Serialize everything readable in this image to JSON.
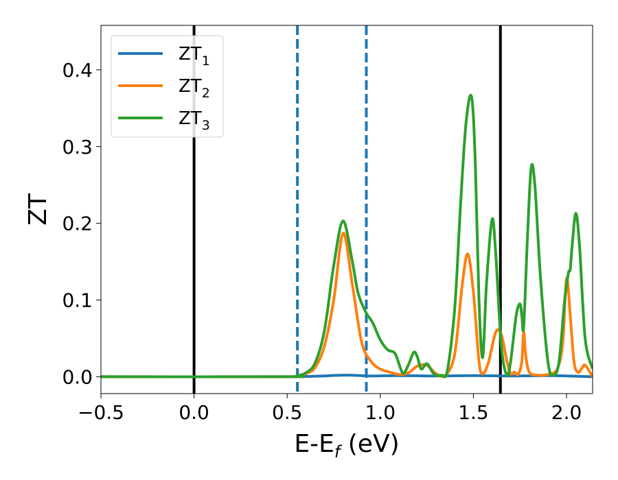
{
  "chart_data": {
    "type": "line",
    "title": "",
    "xlabel": "E-E",
    "xlabel_sub": "f",
    "xlabel_unit": " (eV)",
    "ylabel": "ZT",
    "xlim": [
      -0.5,
      2.14
    ],
    "ylim": [
      -0.022,
      0.458
    ],
    "xticks": [
      -0.5,
      0.0,
      0.5,
      1.0,
      1.5,
      2.0
    ],
    "xtick_labels": [
      "−0.5",
      "0.0",
      "0.5",
      "1.0",
      "1.5",
      "2.0"
    ],
    "yticks": [
      0.0,
      0.1,
      0.2,
      0.3,
      0.4
    ],
    "ytick_labels": [
      "0.0",
      "0.1",
      "0.2",
      "0.3",
      "0.4"
    ],
    "grid": false,
    "legend_position": "top-left",
    "vlines": [
      {
        "x": 0.0,
        "style": "solid",
        "color": "#000000"
      },
      {
        "x": 0.555,
        "style": "dashed",
        "color": "#1f77b4"
      },
      {
        "x": 0.925,
        "style": "dashed",
        "color": "#1f77b4"
      },
      {
        "x": 1.645,
        "style": "solid",
        "color": "#000000"
      }
    ],
    "series": [
      {
        "name": "ZT",
        "name_sub": "1",
        "color": "#1f77b4",
        "x": [
          -0.5,
          0.5,
          0.8,
          0.95,
          1.1,
          1.3,
          1.5,
          1.7,
          1.9,
          2.0,
          2.14
        ],
        "y": [
          0.0,
          0.0,
          0.002,
          0.001,
          0.0015,
          0.001,
          0.0015,
          0.001,
          0.0015,
          0.001,
          0.0
        ]
      },
      {
        "name": "ZT",
        "name_sub": "2",
        "color": "#ff7f0e",
        "x": [
          -0.5,
          0.5,
          0.55,
          0.6,
          0.65,
          0.7,
          0.75,
          0.8,
          0.85,
          0.9,
          0.95,
          1.0,
          1.05,
          1.1,
          1.15,
          1.2,
          1.25,
          1.3,
          1.35,
          1.4,
          1.44,
          1.47,
          1.5,
          1.53,
          1.55,
          1.58,
          1.62,
          1.65,
          1.68,
          1.7,
          1.72,
          1.74,
          1.76,
          1.77,
          1.78,
          1.8,
          1.85,
          1.9,
          1.95,
          1.98,
          2.0,
          2.02,
          2.04,
          2.06,
          2.08,
          2.1,
          2.14
        ],
        "y": [
          0.0,
          0.0,
          0.001,
          0.004,
          0.012,
          0.04,
          0.1,
          0.187,
          0.12,
          0.045,
          0.02,
          0.01,
          0.006,
          0.003,
          0.005,
          0.014,
          0.015,
          0.004,
          0.002,
          0.03,
          0.12,
          0.16,
          0.11,
          0.02,
          0.004,
          0.018,
          0.058,
          0.055,
          0.02,
          0.004,
          0.006,
          0.003,
          0.02,
          0.058,
          0.03,
          0.006,
          0.002,
          0.003,
          0.01,
          0.045,
          0.128,
          0.08,
          0.02,
          0.006,
          0.01,
          0.015,
          0.0
        ]
      },
      {
        "name": "ZT",
        "name_sub": "3",
        "color": "#2ca02c",
        "x": [
          -0.5,
          0.5,
          0.55,
          0.6,
          0.65,
          0.7,
          0.75,
          0.8,
          0.85,
          0.88,
          0.92,
          0.96,
          1.0,
          1.04,
          1.08,
          1.12,
          1.15,
          1.18,
          1.2,
          1.22,
          1.25,
          1.28,
          1.3,
          1.33,
          1.36,
          1.4,
          1.43,
          1.46,
          1.49,
          1.51,
          1.53,
          1.55,
          1.57,
          1.6,
          1.62,
          1.65,
          1.68,
          1.7,
          1.73,
          1.75,
          1.76,
          1.77,
          1.79,
          1.81,
          1.83,
          1.86,
          1.9,
          1.93,
          1.96,
          1.99,
          2.01,
          2.02,
          2.03,
          2.05,
          2.07,
          2.1,
          2.14
        ],
        "y": [
          0.0,
          0.0,
          0.001,
          0.005,
          0.018,
          0.06,
          0.145,
          0.203,
          0.15,
          0.11,
          0.085,
          0.07,
          0.048,
          0.035,
          0.03,
          0.005,
          0.015,
          0.032,
          0.025,
          0.01,
          0.017,
          0.006,
          0.002,
          0.002,
          0.008,
          0.09,
          0.22,
          0.33,
          0.365,
          0.28,
          0.1,
          0.025,
          0.12,
          0.205,
          0.16,
          0.04,
          0.002,
          0.02,
          0.08,
          0.095,
          0.08,
          0.065,
          0.18,
          0.272,
          0.25,
          0.13,
          0.02,
          0.002,
          0.02,
          0.1,
          0.135,
          0.14,
          0.17,
          0.213,
          0.17,
          0.05,
          0.01
        ]
      }
    ]
  }
}
